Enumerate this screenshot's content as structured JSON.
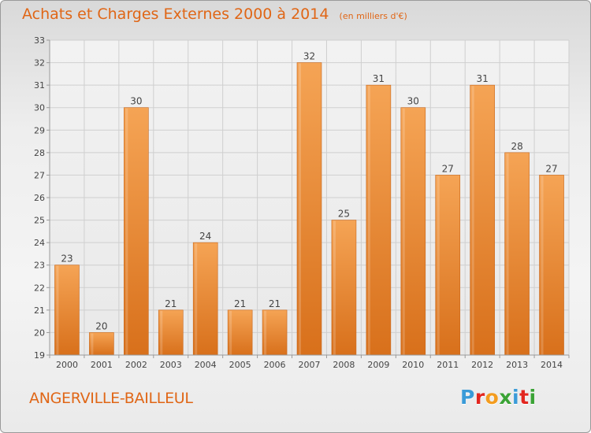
{
  "header": {
    "title": "Achats et Charges Externes 2000 à 2014",
    "subtitle": "(en milliers d'€)"
  },
  "footer": {
    "commune": "ANGERVILLE-BAILLEUL",
    "logo_letters": [
      "P",
      "r",
      "o",
      "x",
      "i",
      "t",
      "i"
    ],
    "logo_colors": [
      "#3a9bd8",
      "#e2261f",
      "#f39c1f",
      "#3aa335",
      "#3a9bd8",
      "#e2261f",
      "#3aa335"
    ]
  },
  "colors": {
    "bar_top": "#f5a455",
    "bar_bottom": "#d8701b",
    "grid": "#cfcfcf",
    "axis": "#9a9a9a",
    "text": "#444444",
    "title": "#e06616"
  },
  "chart_data": {
    "type": "bar",
    "title": "Achats et Charges Externes 2000 à 2014",
    "subtitle": "(en milliers d'€)",
    "categories": [
      "2000",
      "2001",
      "2002",
      "2003",
      "2004",
      "2005",
      "2006",
      "2007",
      "2008",
      "2009",
      "2010",
      "2011",
      "2012",
      "2013",
      "2014"
    ],
    "values": [
      23,
      20,
      30,
      21,
      24,
      21,
      21,
      32,
      25,
      31,
      30,
      27,
      31,
      28,
      27
    ],
    "xlabel": "",
    "ylabel": "",
    "ylim": [
      19,
      33
    ],
    "yticks": [
      19,
      20,
      21,
      22,
      23,
      24,
      25,
      26,
      27,
      28,
      29,
      30,
      31,
      32,
      33
    ],
    "grid": true,
    "data_labels": true,
    "legend": "none"
  }
}
